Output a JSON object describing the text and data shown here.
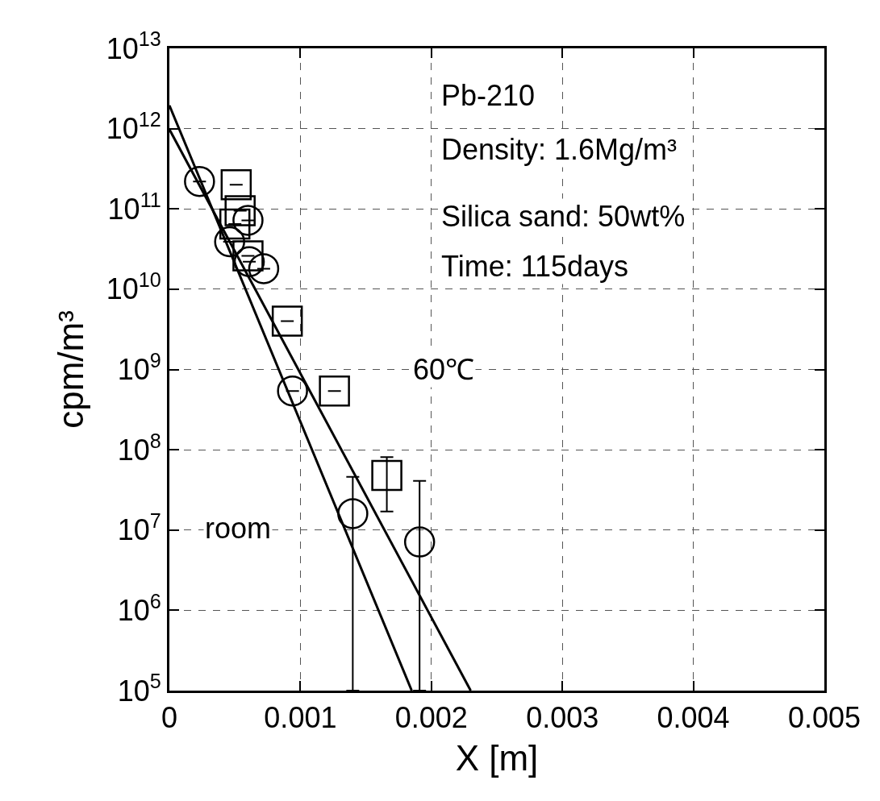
{
  "chart_data": {
    "type": "scatter",
    "xlabel": "X [m]",
    "ylabel": "cpm/m³",
    "log": "y",
    "grid": true,
    "xlim": [
      0,
      0.005
    ],
    "xticks": [
      0,
      0.001,
      0.002,
      0.003,
      0.004,
      0.005
    ],
    "ylim": [
      100000.0,
      10000000000000.0
    ],
    "yticks": [
      {
        "value": 100000.0,
        "label": "10$^{5}$"
      },
      {
        "value": 1000000.0,
        "label": "10$^{6}$"
      },
      {
        "value": 10000000.0,
        "label": "10$^{7}$"
      },
      {
        "value": 100000000.0,
        "label": "10$^{8}$"
      },
      {
        "value": 1000000000.0,
        "label": "10$^{9}$"
      },
      {
        "value": 10000000000.0,
        "label": "10$^{10}$"
      },
      {
        "value": 100000000000.0,
        "label": "10$^{11}$"
      },
      {
        "value": 1000000000000.0,
        "label": "10$^{12}$"
      },
      {
        "value": 10000000000000.0,
        "label": "10$^{13}$"
      }
    ],
    "series": [
      {
        "marker": "circle",
        "color": "#000000",
        "x": [
          0.00023,
          0.00046,
          0.0006,
          0.00061,
          0.00072,
          0.00094,
          0.0014,
          0.00191
        ],
        "values": [
          220000000000.0,
          39000000000.0,
          72000000000.0,
          22000000000.0,
          18000000000.0,
          540000000.0,
          16000000.0,
          7100000.0
        ],
        "errors": [
          null,
          null,
          null,
          null,
          null,
          null,
          [
            100000.0,
            46000000.0
          ],
          [
            100000.0,
            41000000.0
          ]
        ]
      },
      {
        "marker": "square",
        "color": "#000000",
        "x": [
          0.00051,
          0.00054,
          0.0005,
          0.0006,
          0.0009,
          0.00126,
          0.00166
        ],
        "values": [
          200000000000.0,
          95000000000.0,
          65000000000.0,
          26000000000.0,
          4000000000.0,
          540000000.0,
          48000000.0
        ],
        "errors": [
          null,
          null,
          null,
          null,
          null,
          null,
          [
            17000000.0,
            81000000.0
          ]
        ]
      },
      {
        "type": "line",
        "marker": "none",
        "color": "#000000",
        "x": [
          0,
          0.00185
        ],
        "values": [
          1950000000000.0,
          100000.0
        ]
      },
      {
        "type": "line",
        "marker": "none",
        "color": "#000000",
        "x": [
          0,
          0.0023
        ],
        "values": [
          980000000000.0,
          100000.0
        ]
      }
    ],
    "annotations": [
      "Pb-210",
      "Density: 1.6Mg/m³",
      "Silica sand: 50wt%",
      "Time: 115days",
      "60℃",
      "room"
    ]
  }
}
